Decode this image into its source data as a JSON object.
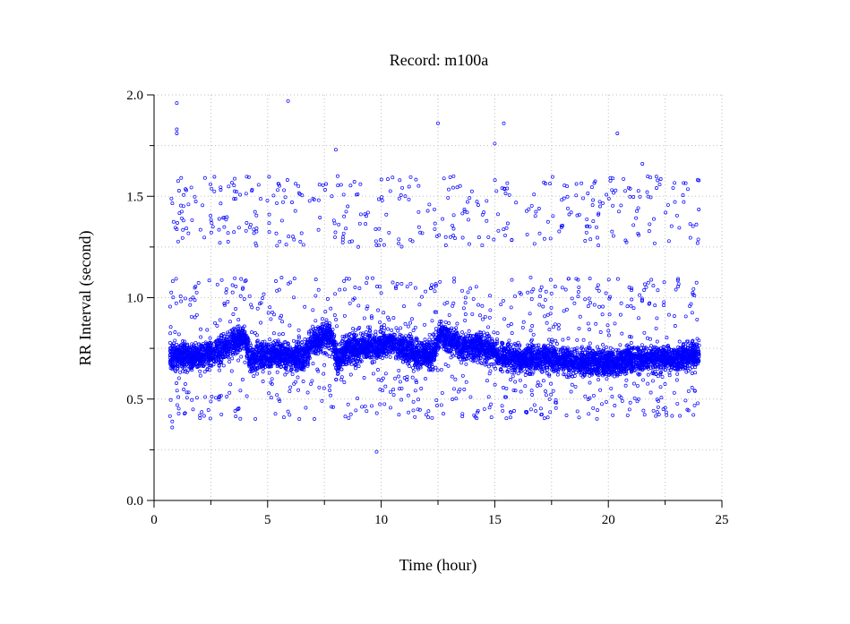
{
  "chart_data": {
    "type": "scatter",
    "title": "Record:  m100a",
    "xlabel": "Time (hour)",
    "ylabel": "RR Interval (second)",
    "xlim": [
      0,
      25
    ],
    "ylim": [
      0.0,
      2.0
    ],
    "x_ticks": [
      0,
      5,
      10,
      15,
      20,
      25
    ],
    "x_tick_labels": [
      "0",
      "5",
      "10",
      "15",
      "20",
      "25"
    ],
    "y_ticks": [
      0.0,
      0.5,
      1.0,
      1.5,
      2.0
    ],
    "y_tick_labels": [
      "0.0",
      "0.5",
      "1.0",
      "1.5",
      "2.0"
    ],
    "grid": true,
    "marker_color": "#0000ff",
    "series": [
      {
        "x_range": [
          0.7,
          24.0
        ],
        "baseline": [
          [
            0.7,
            0.72
          ],
          [
            1.5,
            0.7
          ],
          [
            2.5,
            0.72
          ],
          [
            3.5,
            0.78
          ],
          [
            4.0,
            0.8
          ],
          [
            4.2,
            0.7
          ],
          [
            5.5,
            0.72
          ],
          [
            6.5,
            0.7
          ],
          [
            7.0,
            0.78
          ],
          [
            7.8,
            0.82
          ],
          [
            8.1,
            0.68
          ],
          [
            8.5,
            0.75
          ],
          [
            9.5,
            0.76
          ],
          [
            10.5,
            0.78
          ],
          [
            11.5,
            0.72
          ],
          [
            12.3,
            0.72
          ],
          [
            12.6,
            0.82
          ],
          [
            13.5,
            0.76
          ],
          [
            14.5,
            0.76
          ],
          [
            15.5,
            0.7
          ],
          [
            16.5,
            0.7
          ],
          [
            17.5,
            0.7
          ],
          [
            19.0,
            0.68
          ],
          [
            20.0,
            0.68
          ],
          [
            21.5,
            0.7
          ],
          [
            23.0,
            0.7
          ],
          [
            24.0,
            0.72
          ]
        ],
        "band_halfwidth": 0.07,
        "scattered_range": [
          0.4,
          1.1
        ],
        "ectopic_cluster_range": [
          1.25,
          1.6
        ],
        "outliers": [
          [
            1.0,
            1.96
          ],
          [
            1.0,
            1.83
          ],
          [
            1.0,
            1.81
          ],
          [
            5.9,
            1.97
          ],
          [
            12.5,
            1.86
          ],
          [
            20.4,
            1.81
          ],
          [
            15.0,
            1.76
          ],
          [
            15.4,
            1.86
          ],
          [
            21.5,
            1.66
          ],
          [
            9.8,
            0.24
          ],
          [
            0.8,
            0.36
          ],
          [
            0.8,
            0.39
          ],
          [
            8.0,
            1.73
          ]
        ]
      }
    ]
  }
}
